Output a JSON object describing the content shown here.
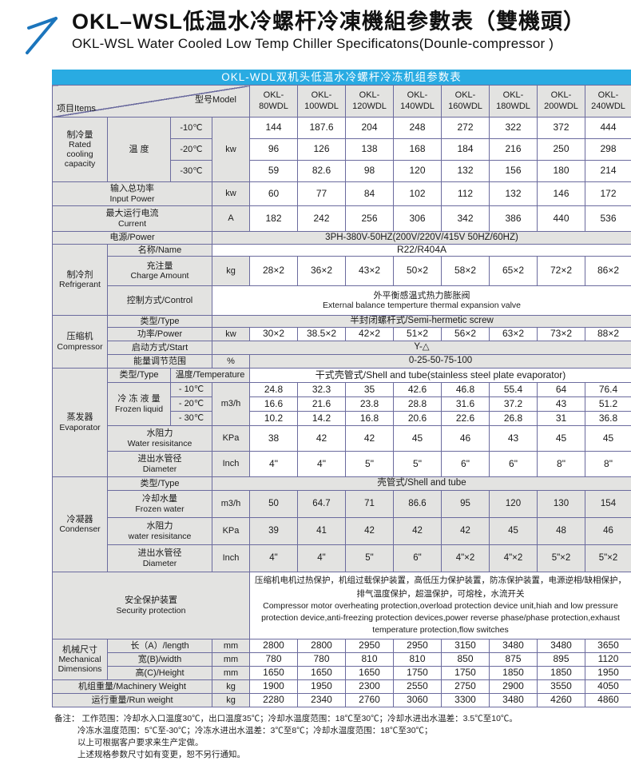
{
  "header": {
    "title_zh": "OKL–WSL低温水冷螺杆冷凍機組参數表（雙機頭）",
    "title_en": "OKL-WSL Water Cooled Low Temp Chiller Specificatons(Dounle-compressor )"
  },
  "banner": "OKL-WDL双机头低温水冷螺杆冷冻机组参数表",
  "corner": {
    "items": "项目Items",
    "model": "型号Model"
  },
  "models": [
    "OKL-80WDL",
    "OKL-100WDL",
    "OKL-120WDL",
    "OKL-140WDL",
    "OKL-160WDL",
    "OKL-180WDL",
    "OKL-200WDL",
    "OKL-240WDL"
  ],
  "cooling": {
    "group_zh": "制冷量",
    "group_en": "Rated cooling capacity",
    "temp_label": "温 度",
    "unit": "kw",
    "rows": [
      {
        "temp": "-10℃",
        "values": [
          "144",
          "187.6",
          "204",
          "248",
          "272",
          "322",
          "372",
          "444"
        ]
      },
      {
        "temp": "-20℃",
        "values": [
          "96",
          "126",
          "138",
          "168",
          "184",
          "216",
          "250",
          "298"
        ]
      },
      {
        "temp": "-30℃",
        "values": [
          "59",
          "82.6",
          "98",
          "120",
          "132",
          "156",
          "180",
          "214"
        ]
      }
    ]
  },
  "input_power": {
    "label_zh": "输入总功率",
    "label_en": "Input Power",
    "unit": "kw",
    "values": [
      "60",
      "77",
      "84",
      "102",
      "112",
      "132",
      "146",
      "172"
    ]
  },
  "current": {
    "label_zh": "最大运行电流",
    "label_en": "Current",
    "unit": "A",
    "values": [
      "182",
      "242",
      "256",
      "306",
      "342",
      "386",
      "440",
      "536"
    ]
  },
  "power_supply": {
    "label": "电源/Power",
    "value": "3PH-380V-50HZ(200V/220V/415V 50HZ/60HZ)"
  },
  "refrigerant": {
    "group_zh": "制冷剂",
    "group_en": "Refrigerant",
    "name_label": "名称/Name",
    "name_value": "R22/R404A",
    "charge_label_zh": "充注量",
    "charge_label_en": "Charge Amount",
    "charge_unit": "kg",
    "charge_values": [
      "28×2",
      "36×2",
      "43×2",
      "50×2",
      "58×2",
      "65×2",
      "72×2",
      "86×2"
    ],
    "control_label": "控制方式/Control",
    "control_value_zh": "外平衡感温式热力膨胀阀",
    "control_value_en": "External balance temperture thermal expansion valve"
  },
  "compressor": {
    "group_zh": "压缩机",
    "group_en": "Compressor",
    "type_label": "类型/Type",
    "type_value": "半封闭螺杆式/Semi-hermetic screw",
    "power_label": "功率/Power",
    "power_unit": "kw",
    "power_values": [
      "30×2",
      "38.5×2",
      "42×2",
      "51×2",
      "56×2",
      "63×2",
      "73×2",
      "88×2"
    ],
    "start_label": "启动方式/Start",
    "start_value": "Y-△",
    "energy_label": "能量调节范围",
    "energy_unit": "%",
    "energy_value": "0-25-50-75-100"
  },
  "evaporator": {
    "group_zh": "蒸发器",
    "group_en": "Evaporator",
    "type_label": "类型/Type",
    "temp_header": "温度/Temperature",
    "type_value": "干式壳管式/Shell and tube(stainless steel plate evaporator)",
    "liquid_label_zh": "冷 冻 液 量",
    "liquid_label_en": "Frozen liquid",
    "liquid_unit": "m3/h",
    "liquid_rows": [
      {
        "temp": "- 10℃",
        "values": [
          "24.8",
          "32.3",
          "35",
          "42.6",
          "46.8",
          "55.4",
          "64",
          "76.4"
        ]
      },
      {
        "temp": "- 20℃",
        "values": [
          "16.6",
          "21.6",
          "23.8",
          "28.8",
          "31.6",
          "37.2",
          "43",
          "51.2"
        ]
      },
      {
        "temp": "- 30℃",
        "values": [
          "10.2",
          "14.2",
          "16.8",
          "20.6",
          "22.6",
          "26.8",
          "31",
          "36.8"
        ]
      }
    ],
    "resistance_label_zh": "水阻力",
    "resistance_label_en": "Water resisitance",
    "resistance_unit": "KPa",
    "resistance_values": [
      "38",
      "42",
      "42",
      "45",
      "46",
      "43",
      "45",
      "45"
    ],
    "diameter_label_zh": "进出水管径",
    "diameter_label_en": "Diameter",
    "diameter_unit": "Inch",
    "diameter_values": [
      "4\"",
      "4\"",
      "5\"",
      "5\"",
      "6\"",
      "6\"",
      "8\"",
      "8\""
    ]
  },
  "condenser": {
    "group_zh": "冷凝器",
    "group_en": "Condenser",
    "type_label": "类型/Type",
    "type_value": "壳管式/Shell and tube",
    "water_label_zh": "冷却水量",
    "water_label_en": "Frozen water",
    "water_unit": "m3/h",
    "water_values": [
      "50",
      "64.7",
      "71",
      "86.6",
      "95",
      "120",
      "130",
      "154"
    ],
    "resistance_label_zh": "水阻力",
    "resistance_label_en": "water resisitance",
    "resistance_unit": "KPa",
    "resistance_values": [
      "39",
      "41",
      "42",
      "42",
      "42",
      "45",
      "48",
      "46"
    ],
    "diameter_label_zh": "进出水管径",
    "diameter_label_en": "Diameter",
    "diameter_unit": "Inch",
    "diameter_values": [
      "4\"",
      "4\"",
      "5\"",
      "6\"",
      "4\"×2",
      "4\"×2",
      "5\"×2",
      "5\"×2"
    ]
  },
  "security": {
    "label_zh": "安全保护装置",
    "label_en": "Security protection",
    "text_zh": "压缩机电机过热保护，机组过载保护装置，高低压力保护装置，防冻保护装置，电源逆相/缺相保护，排气温度保护，超温保护，可熔栓，水流开关",
    "text_en": "Compressor motor overheating protection,overload protection device unit,hiah and low pressure protection device,anti-freezing protection devices,power reverse phase/phase protection,exhaust temperature protection,flow switches"
  },
  "dimensions": {
    "group_zh": "机械尺寸",
    "group_en": "Mechanical Dimensions",
    "rows": [
      {
        "label": "长（A）/length",
        "unit": "mm",
        "values": [
          "2800",
          "2800",
          "2950",
          "2950",
          "3150",
          "3480",
          "3480",
          "3650"
        ]
      },
      {
        "label": "宽(B)/width",
        "unit": "mm",
        "values": [
          "780",
          "780",
          "810",
          "810",
          "850",
          "875",
          "895",
          "1120"
        ]
      },
      {
        "label": "高(C)/Height",
        "unit": "mm",
        "values": [
          "1650",
          "1650",
          "1650",
          "1750",
          "1750",
          "1850",
          "1850",
          "1950"
        ]
      }
    ]
  },
  "machinery_weight": {
    "label": "机组重量/Machinery Weight",
    "unit": "kg",
    "values": [
      "1900",
      "1950",
      "2300",
      "2550",
      "2750",
      "2900",
      "3550",
      "4050"
    ]
  },
  "run_weight": {
    "label": "运行重量/Run weight",
    "unit": "kg",
    "values": [
      "2280",
      "2340",
      "2760",
      "3060",
      "3300",
      "3480",
      "4260",
      "4860"
    ]
  },
  "notes": {
    "label": "备注：",
    "lines": [
      "工作范围：冷却水入口温度30℃，出口温度35℃；冷却水温度范围：18℃至30℃；冷却水进出水温差：3.5℃至10℃。",
      "冷冻水温度范围：5℃至-30℃；冷冻水进出水温差：3℃至8℃；冷却水温度范围：18℃至30℃；",
      "以上可根据客户要求来生产定做。",
      "上述规格参数尺寸如有变更，恕不另行通知。"
    ]
  },
  "colors": {
    "banner": "#29abe2",
    "border": "#6b6b9e",
    "cell_gray": "#e3e3e1",
    "arrow": "#1b75bc"
  }
}
